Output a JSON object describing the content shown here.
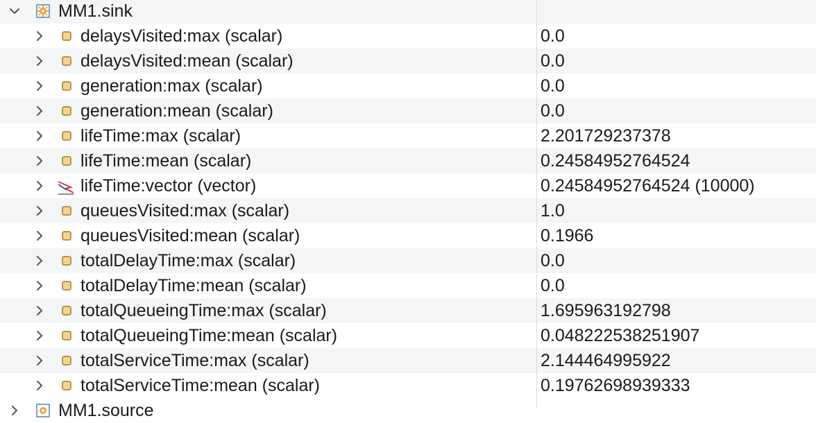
{
  "tree": {
    "root": {
      "label": "MM1.sink",
      "icon": "module-icon",
      "expanded": true
    },
    "rows": [
      {
        "label": "delaysVisited:max (scalar)",
        "value": "0.0",
        "icon": "scalar-icon"
      },
      {
        "label": "delaysVisited:mean (scalar)",
        "value": "0.0",
        "icon": "scalar-icon"
      },
      {
        "label": "generation:max (scalar)",
        "value": "0.0",
        "icon": "scalar-icon"
      },
      {
        "label": "generation:mean (scalar)",
        "value": "0.0",
        "icon": "scalar-icon"
      },
      {
        "label": "lifeTime:max (scalar)",
        "value": "2.201729237378",
        "icon": "scalar-icon"
      },
      {
        "label": "lifeTime:mean (scalar)",
        "value": "0.24584952764524",
        "icon": "scalar-icon"
      },
      {
        "label": "lifeTime:vector (vector)",
        "value": "0.24584952764524 (10000)",
        "icon": "vector-icon"
      },
      {
        "label": "queuesVisited:max (scalar)",
        "value": "1.0",
        "icon": "scalar-icon"
      },
      {
        "label": "queuesVisited:mean (scalar)",
        "value": "0.1966",
        "icon": "scalar-icon"
      },
      {
        "label": "totalDelayTime:max (scalar)",
        "value": "0.0",
        "icon": "scalar-icon"
      },
      {
        "label": "totalDelayTime:mean (scalar)",
        "value": "0.0",
        "icon": "scalar-icon"
      },
      {
        "label": "totalQueueingTime:max (scalar)",
        "value": "1.695963192798",
        "icon": "scalar-icon"
      },
      {
        "label": "totalQueueingTime:mean (scalar)",
        "value": "0.048222538251907",
        "icon": "scalar-icon"
      },
      {
        "label": "totalServiceTime:max (scalar)",
        "value": "2.144464995922",
        "icon": "scalar-icon"
      },
      {
        "label": "totalServiceTime:mean (scalar)",
        "value": "0.19762698939333",
        "icon": "scalar-icon"
      }
    ],
    "next_root": {
      "label": "MM1.source",
      "icon": "module-icon",
      "expanded": false
    }
  },
  "colors": {
    "row_alt": "#f4f5f5",
    "divider": "#dcdcdc",
    "chevron": "#555555",
    "scalar_fill": "#f3d68a",
    "scalar_stroke": "#a07a28",
    "module_fill": "#e8a33b"
  }
}
